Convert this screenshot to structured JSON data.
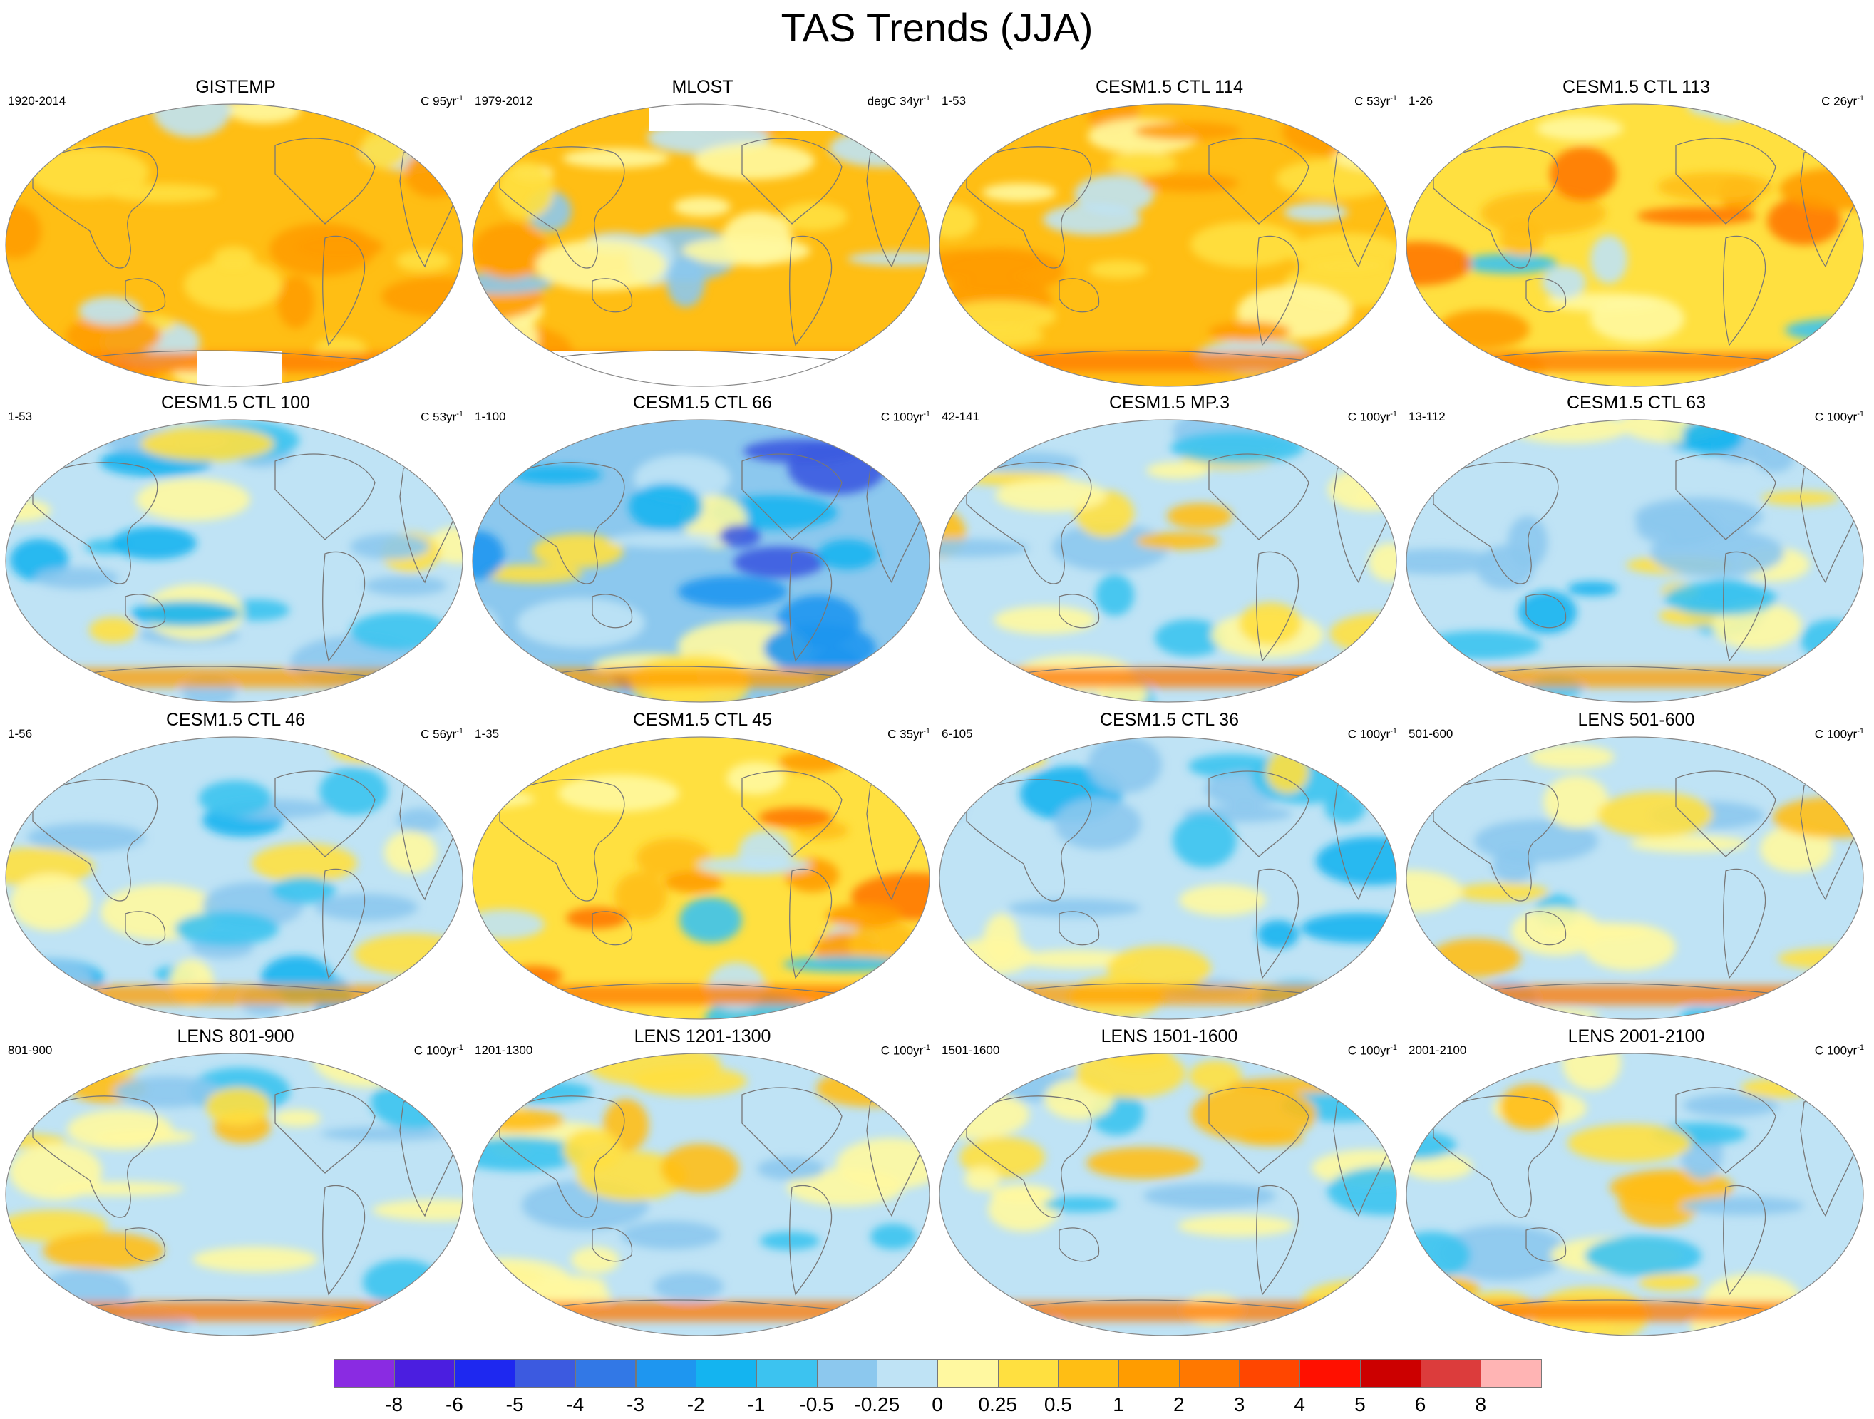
{
  "figure": {
    "title": "TAS Trends (JJA)"
  },
  "panels": [
    {
      "title": "GISTEMP",
      "period": "1920-2014",
      "units": "C 95yr",
      "units_exp": "-1",
      "pattern": "warm",
      "missing_polar": true
    },
    {
      "title": "MLOST",
      "period": "1979-2012",
      "units": "degC 34yr",
      "units_exp": "-1",
      "pattern": "mlost",
      "missing_polar": true
    },
    {
      "title": "CESM1.5 CTL 114",
      "period": "1-53",
      "units": "C 53yr",
      "units_exp": "-1",
      "pattern": "warm"
    },
    {
      "title": "CESM1.5 CTL 113",
      "period": "1-26",
      "units": "C 26yr",
      "units_exp": "-1",
      "pattern": "mixwarm"
    },
    {
      "title": "CESM1.5 CTL 100",
      "period": "1-53",
      "units": "C 53yr",
      "units_exp": "-1",
      "pattern": "cool"
    },
    {
      "title": "CESM1.5 CTL 66",
      "period": "1-100",
      "units": "C 100yr",
      "units_exp": "-1",
      "pattern": "cold"
    },
    {
      "title": "CESM1.5 MP.3",
      "period": "42-141",
      "units": "C 100yr",
      "units_exp": "-1",
      "pattern": "mix"
    },
    {
      "title": "CESM1.5 CTL 63",
      "period": "13-112",
      "units": "C 100yr",
      "units_exp": "-1",
      "pattern": "cool"
    },
    {
      "title": "CESM1.5 CTL 46",
      "period": "1-56",
      "units": "C 56yr",
      "units_exp": "-1",
      "pattern": "cool"
    },
    {
      "title": "CESM1.5 CTL 45",
      "period": "1-35",
      "units": "C 35yr",
      "units_exp": "-1",
      "pattern": "mixwarm"
    },
    {
      "title": "CESM1.5 CTL 36",
      "period": "6-105",
      "units": "C 100yr",
      "units_exp": "-1",
      "pattern": "cool"
    },
    {
      "title": "LENS 501-600",
      "period": "501-600",
      "units": "C 100yr",
      "units_exp": "-1",
      "pattern": "mix"
    },
    {
      "title": "LENS 801-900",
      "period": "801-900",
      "units": "C 100yr",
      "units_exp": "-1",
      "pattern": "mix"
    },
    {
      "title": "LENS 1201-1300",
      "period": "1201-1300",
      "units": "C 100yr",
      "units_exp": "-1",
      "pattern": "mix"
    },
    {
      "title": "LENS 1501-1600",
      "period": "1501-1600",
      "units": "C 100yr",
      "units_exp": "-1",
      "pattern": "mix"
    },
    {
      "title": "LENS 2001-2100",
      "period": "2001-2100",
      "units": "C 100yr",
      "units_exp": "-1",
      "pattern": "mix"
    }
  ],
  "colorbar": {
    "colors": [
      "#8a2be2",
      "#4b1ee0",
      "#1e28f0",
      "#3c5ae0",
      "#3278e6",
      "#1e96f0",
      "#14b4f0",
      "#3cc3f0",
      "#8cc8ee",
      "#bfe3f5",
      "#fff8a0",
      "#ffe040",
      "#ffbe14",
      "#ff9c00",
      "#ff7800",
      "#ff4600",
      "#ff1000",
      "#cc0000",
      "#dc3c3c",
      "#ffb4b4"
    ],
    "labels": [
      "-8",
      "-6",
      "-5",
      "-4",
      "-3",
      "-2",
      "-1",
      "-0.5",
      "-0.25",
      "0",
      "0.25",
      "0.5",
      "1",
      "2",
      "3",
      "4",
      "5",
      "6",
      "8"
    ]
  }
}
